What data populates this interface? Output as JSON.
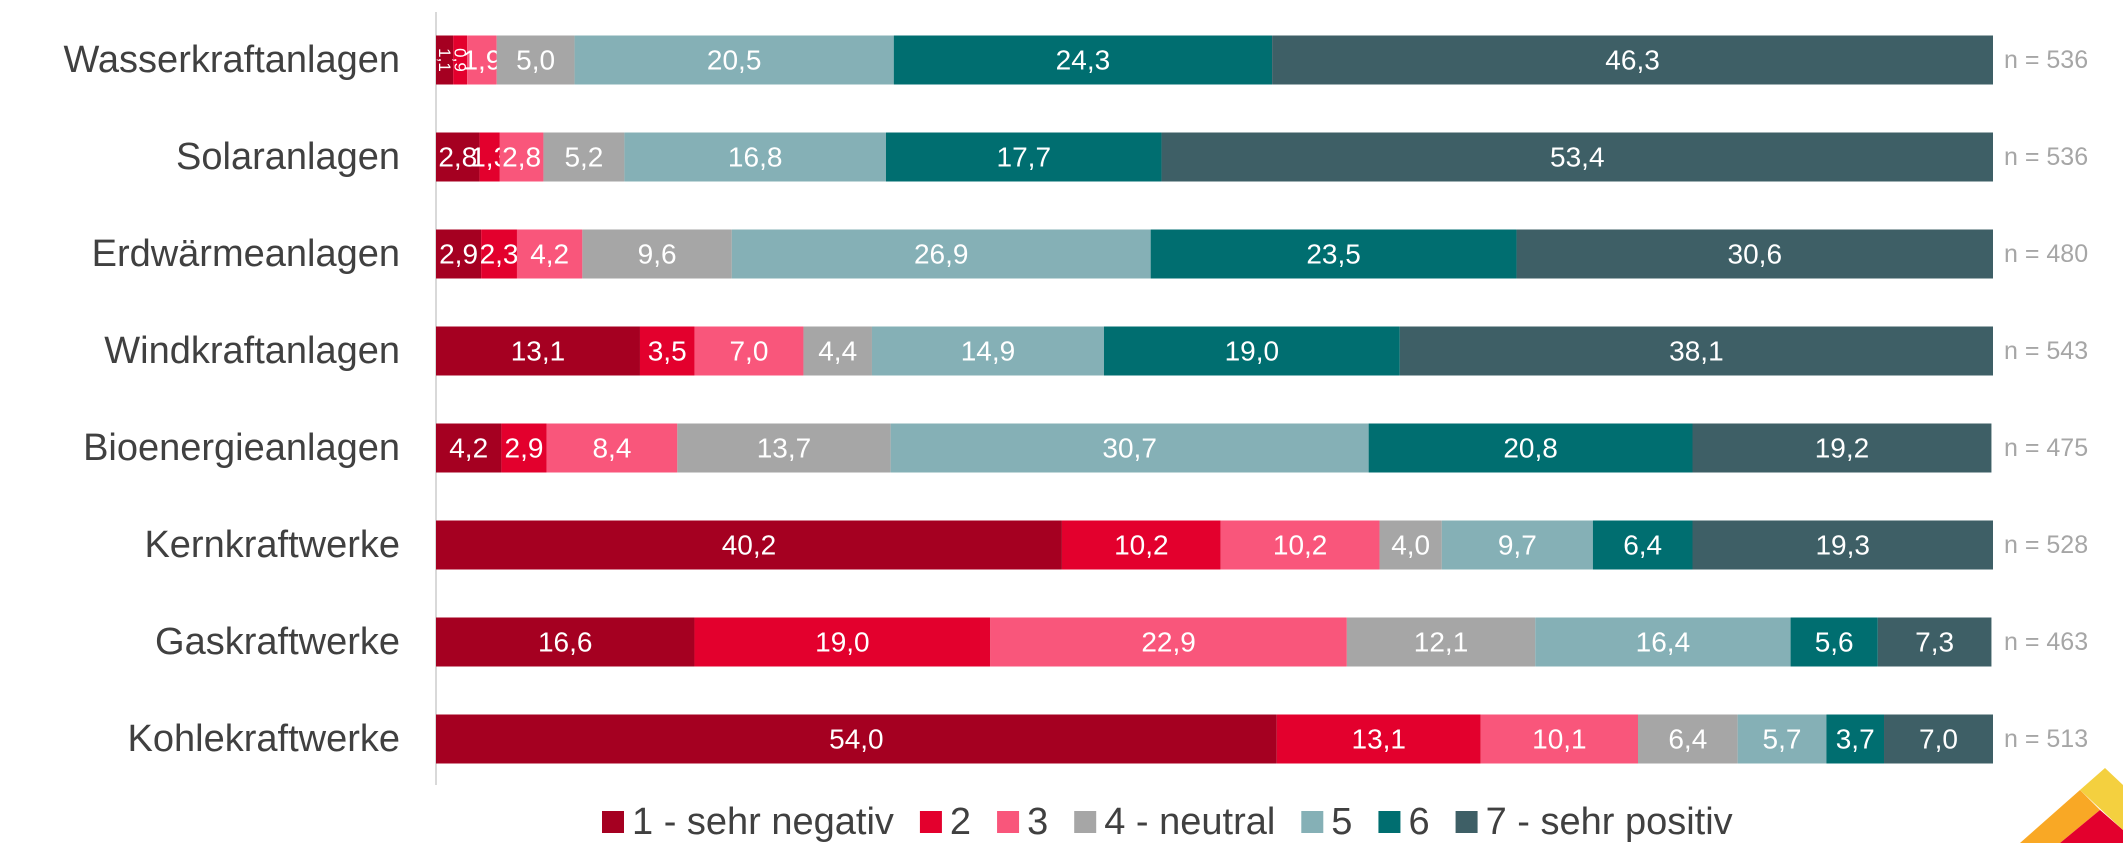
{
  "chart_data": {
    "type": "stacked-bar-horizontal",
    "categories": [
      "Wasserkraftanlagen",
      "Solaranlagen",
      "Erdwärmeanlagen",
      "Windkraftanlagen",
      "Bioenergieanlagen",
      "Kernkraftwerke",
      "Gaskraftwerke",
      "Kohlekraftwerke"
    ],
    "n_labels": [
      "n = 536",
      "n = 536",
      "n = 480",
      "n = 543",
      "n = 475",
      "n = 528",
      "n = 463",
      "n = 513"
    ],
    "xlim": [
      0,
      100
    ],
    "legend": "bottom",
    "series": [
      {
        "name": "1 - sehr negativ",
        "color": "#a50021",
        "values": [
          1.1,
          2.8,
          2.9,
          13.1,
          4.2,
          40.2,
          16.6,
          54.0
        ],
        "value_labels": [
          "1,1",
          "2,8",
          "2,9",
          "13,1",
          "4,2",
          "40,2",
          "16,6",
          "54,0"
        ]
      },
      {
        "name": "2",
        "color": "#e3002d",
        "values": [
          0.9,
          1.3,
          2.3,
          3.5,
          2.9,
          10.2,
          19.0,
          13.1
        ],
        "value_labels": [
          "0,9",
          "1,3",
          "2,3",
          "3,5",
          "2,9",
          "10,2",
          "19,0",
          "13,1"
        ]
      },
      {
        "name": "3",
        "color": "#f9567b",
        "values": [
          1.9,
          2.8,
          4.2,
          7.0,
          8.4,
          10.2,
          22.9,
          10.1
        ],
        "value_labels": [
          "1,9",
          "2,8",
          "4,2",
          "7,0",
          "8,4",
          "10,2",
          "22,9",
          "10,1"
        ]
      },
      {
        "name": "4 - neutral",
        "color": "#a6a6a6",
        "values": [
          5.0,
          5.2,
          9.6,
          4.4,
          13.7,
          4.0,
          12.1,
          6.4
        ],
        "value_labels": [
          "5,0",
          "5,2",
          "9,6",
          "4,4",
          "13,7",
          "4,0",
          "12,1",
          "6,4"
        ]
      },
      {
        "name": "5",
        "color": "#85b0b6",
        "values": [
          20.5,
          16.8,
          26.9,
          14.9,
          30.7,
          9.7,
          16.4,
          5.7
        ],
        "value_labels": [
          "20,5",
          "16,8",
          "26,9",
          "14,9",
          "30,7",
          "9,7",
          "16,4",
          "5,7"
        ]
      },
      {
        "name": "6",
        "color": "#006e70",
        "values": [
          24.3,
          17.7,
          23.5,
          19.0,
          20.8,
          6.4,
          5.6,
          3.7
        ],
        "value_labels": [
          "24,3",
          "17,7",
          "23,5",
          "19,0",
          "20,8",
          "6,4",
          "5,6",
          "3,7"
        ]
      },
      {
        "name": "7 - sehr positiv",
        "color": "#3e5f66",
        "values": [
          46.3,
          53.4,
          30.6,
          38.1,
          19.2,
          19.3,
          7.3,
          7.0
        ],
        "value_labels": [
          "46,3",
          "53,4",
          "30,6",
          "38,1",
          "19,2",
          "19,3",
          "7,3",
          "7,0"
        ]
      }
    ]
  }
}
